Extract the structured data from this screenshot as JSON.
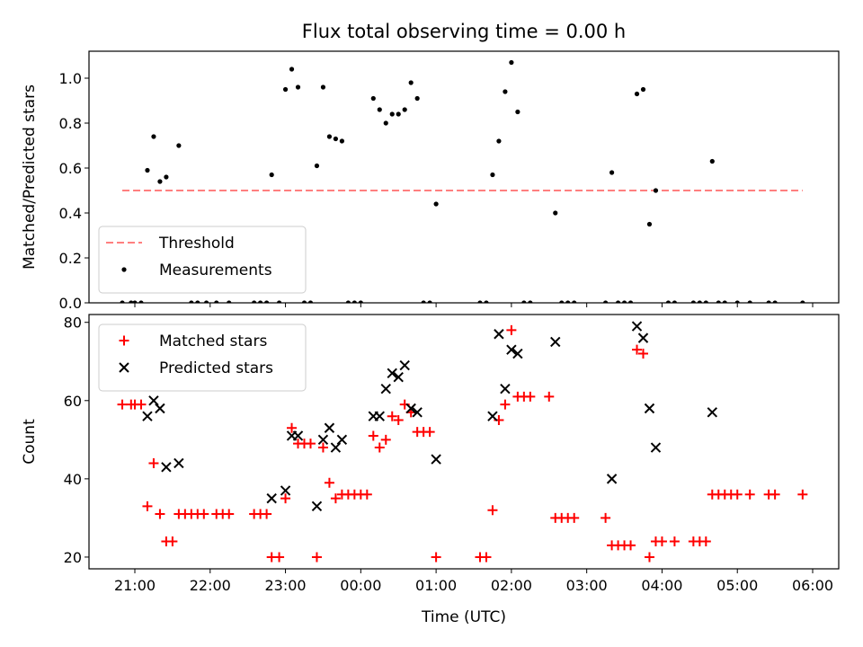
{
  "chart_data": {
    "title": "Flux total observing time = 0.00 h",
    "xlabel": "Time (UTC)",
    "x_ticks": [
      "21:00",
      "22:00",
      "23:00",
      "00:00",
      "01:00",
      "02:00",
      "03:00",
      "04:00",
      "05:00",
      "06:00"
    ],
    "panels": [
      {
        "type": "scatter",
        "ylabel": "Matched/Predicted stars",
        "ylim": [
          0,
          1.12
        ],
        "y_ticks": [
          "0.0",
          "0.2",
          "0.4",
          "0.6",
          "0.8",
          "1.0"
        ],
        "legend_position": "lower-left",
        "threshold": {
          "name": "Threshold",
          "value": 0.5,
          "x_range": [
            "20:50",
            "05:52"
          ],
          "color": "#ff7f7f",
          "style": "dashed"
        },
        "series": [
          {
            "name": "Measurements",
            "color": "#000000",
            "marker": "dot",
            "points": [
              [
                "20:50",
                0
              ],
              [
                "20:57",
                0
              ],
              [
                "21:00",
                0
              ],
              [
                "21:05",
                0
              ],
              [
                "21:10",
                0.59
              ],
              [
                "21:15",
                0.74
              ],
              [
                "21:20",
                0.54
              ],
              [
                "21:25",
                0.56
              ],
              [
                "21:35",
                0.7
              ],
              [
                "21:45",
                0
              ],
              [
                "21:50",
                0
              ],
              [
                "21:57",
                0
              ],
              [
                "22:05",
                0
              ],
              [
                "22:15",
                0
              ],
              [
                "22:35",
                0
              ],
              [
                "22:40",
                0
              ],
              [
                "22:45",
                0
              ],
              [
                "22:49",
                0.57
              ],
              [
                "22:55",
                0
              ],
              [
                "23:00",
                0.95
              ],
              [
                "23:05",
                1.04
              ],
              [
                "23:10",
                0.96
              ],
              [
                "23:15",
                0
              ],
              [
                "23:20",
                0
              ],
              [
                "23:25",
                0.61
              ],
              [
                "23:30",
                0.96
              ],
              [
                "23:35",
                0.74
              ],
              [
                "23:40",
                0.73
              ],
              [
                "23:45",
                0.72
              ],
              [
                "23:50",
                0
              ],
              [
                "23:55",
                0
              ],
              [
                "00:00",
                0
              ],
              [
                "00:10",
                0.91
              ],
              [
                "00:15",
                0.86
              ],
              [
                "00:20",
                0.8
              ],
              [
                "00:25",
                0.84
              ],
              [
                "00:30",
                0.84
              ],
              [
                "00:35",
                0.86
              ],
              [
                "00:40",
                0.98
              ],
              [
                "00:45",
                0.91
              ],
              [
                "00:50",
                0
              ],
              [
                "00:55",
                0
              ],
              [
                "01:00",
                0.44
              ],
              [
                "01:35",
                0
              ],
              [
                "01:40",
                0
              ],
              [
                "01:45",
                0.57
              ],
              [
                "01:50",
                0.72
              ],
              [
                "01:55",
                0.94
              ],
              [
                "02:00",
                1.07
              ],
              [
                "02:05",
                0.85
              ],
              [
                "02:10",
                0
              ],
              [
                "02:15",
                0
              ],
              [
                "02:35",
                0.4
              ],
              [
                "02:40",
                0
              ],
              [
                "02:45",
                0
              ],
              [
                "02:50",
                0
              ],
              [
                "03:15",
                0
              ],
              [
                "03:20",
                0.58
              ],
              [
                "03:25",
                0
              ],
              [
                "03:30",
                0
              ],
              [
                "03:35",
                0
              ],
              [
                "03:40",
                0.93
              ],
              [
                "03:45",
                0.95
              ],
              [
                "03:50",
                0.35
              ],
              [
                "03:55",
                0.5
              ],
              [
                "04:05",
                0
              ],
              [
                "04:10",
                0
              ],
              [
                "04:25",
                0
              ],
              [
                "04:30",
                0
              ],
              [
                "04:35",
                0
              ],
              [
                "04:40",
                0.63
              ],
              [
                "04:45",
                0
              ],
              [
                "04:50",
                0
              ],
              [
                "05:00",
                0
              ],
              [
                "05:10",
                0
              ],
              [
                "05:25",
                0
              ],
              [
                "05:30",
                0
              ],
              [
                "05:52",
                0
              ]
            ]
          }
        ]
      },
      {
        "type": "scatter",
        "ylabel": "Count",
        "ylim": [
          17,
          82
        ],
        "y_ticks": [
          "20",
          "40",
          "60",
          "80"
        ],
        "legend_position": "upper-left",
        "series": [
          {
            "name": "Matched stars",
            "color": "#ff0000",
            "marker": "plus",
            "points": [
              [
                "20:50",
                59
              ],
              [
                "20:57",
                59
              ],
              [
                "21:00",
                59
              ],
              [
                "21:05",
                59
              ],
              [
                "21:10",
                33
              ],
              [
                "21:15",
                44
              ],
              [
                "21:20",
                31
              ],
              [
                "21:25",
                24
              ],
              [
                "21:30",
                24
              ],
              [
                "21:35",
                31
              ],
              [
                "21:40",
                31
              ],
              [
                "21:45",
                31
              ],
              [
                "21:50",
                31
              ],
              [
                "21:55",
                31
              ],
              [
                "22:05",
                31
              ],
              [
                "22:10",
                31
              ],
              [
                "22:15",
                31
              ],
              [
                "22:35",
                31
              ],
              [
                "22:40",
                31
              ],
              [
                "22:45",
                31
              ],
              [
                "22:49",
                20
              ],
              [
                "22:55",
                20
              ],
              [
                "23:00",
                35
              ],
              [
                "23:05",
                53
              ],
              [
                "23:10",
                49
              ],
              [
                "23:15",
                49
              ],
              [
                "23:20",
                49
              ],
              [
                "23:25",
                20
              ],
              [
                "23:30",
                48
              ],
              [
                "23:35",
                39
              ],
              [
                "23:40",
                35
              ],
              [
                "23:45",
                36
              ],
              [
                "23:50",
                36
              ],
              [
                "23:55",
                36
              ],
              [
                "00:00",
                36
              ],
              [
                "00:05",
                36
              ],
              [
                "00:10",
                51
              ],
              [
                "00:15",
                48
              ],
              [
                "00:20",
                50
              ],
              [
                "00:25",
                56
              ],
              [
                "00:30",
                55
              ],
              [
                "00:35",
                59
              ],
              [
                "00:40",
                57
              ],
              [
                "00:45",
                52
              ],
              [
                "00:50",
                52
              ],
              [
                "00:55",
                52
              ],
              [
                "01:00",
                20
              ],
              [
                "01:35",
                20
              ],
              [
                "01:40",
                20
              ],
              [
                "01:45",
                32
              ],
              [
                "01:50",
                55
              ],
              [
                "01:55",
                59
              ],
              [
                "02:00",
                78
              ],
              [
                "02:05",
                61
              ],
              [
                "02:10",
                61
              ],
              [
                "02:15",
                61
              ],
              [
                "02:30",
                61
              ],
              [
                "02:35",
                30
              ],
              [
                "02:40",
                30
              ],
              [
                "02:45",
                30
              ],
              [
                "02:50",
                30
              ],
              [
                "03:15",
                30
              ],
              [
                "03:20",
                23
              ],
              [
                "03:25",
                23
              ],
              [
                "03:30",
                23
              ],
              [
                "03:35",
                23
              ],
              [
                "03:40",
                73
              ],
              [
                "03:45",
                72
              ],
              [
                "03:50",
                20
              ],
              [
                "03:55",
                24
              ],
              [
                "04:00",
                24
              ],
              [
                "04:10",
                24
              ],
              [
                "04:25",
                24
              ],
              [
                "04:30",
                24
              ],
              [
                "04:35",
                24
              ],
              [
                "04:40",
                36
              ],
              [
                "04:45",
                36
              ],
              [
                "04:50",
                36
              ],
              [
                "04:55",
                36
              ],
              [
                "05:00",
                36
              ],
              [
                "05:10",
                36
              ],
              [
                "05:25",
                36
              ],
              [
                "05:30",
                36
              ],
              [
                "05:52",
                36
              ]
            ]
          },
          {
            "name": "Predicted stars",
            "color": "#000000",
            "marker": "x",
            "points": [
              [
                "21:10",
                56
              ],
              [
                "21:15",
                60
              ],
              [
                "21:20",
                58
              ],
              [
                "21:25",
                43
              ],
              [
                "21:35",
                44
              ],
              [
                "22:49",
                35
              ],
              [
                "23:00",
                37
              ],
              [
                "23:05",
                51
              ],
              [
                "23:10",
                51
              ],
              [
                "23:25",
                33
              ],
              [
                "23:30",
                50
              ],
              [
                "23:35",
                53
              ],
              [
                "23:40",
                48
              ],
              [
                "23:45",
                50
              ],
              [
                "00:10",
                56
              ],
              [
                "00:15",
                56
              ],
              [
                "00:20",
                63
              ],
              [
                "00:25",
                67
              ],
              [
                "00:30",
                66
              ],
              [
                "00:35",
                69
              ],
              [
                "00:40",
                58
              ],
              [
                "00:45",
                57
              ],
              [
                "01:00",
                45
              ],
              [
                "01:45",
                56
              ],
              [
                "01:50",
                77
              ],
              [
                "01:55",
                63
              ],
              [
                "02:00",
                73
              ],
              [
                "02:05",
                72
              ],
              [
                "02:35",
                75
              ],
              [
                "03:20",
                40
              ],
              [
                "03:40",
                79
              ],
              [
                "03:45",
                76
              ],
              [
                "03:50",
                58
              ],
              [
                "03:55",
                48
              ],
              [
                "04:40",
                57
              ]
            ]
          }
        ]
      }
    ]
  }
}
